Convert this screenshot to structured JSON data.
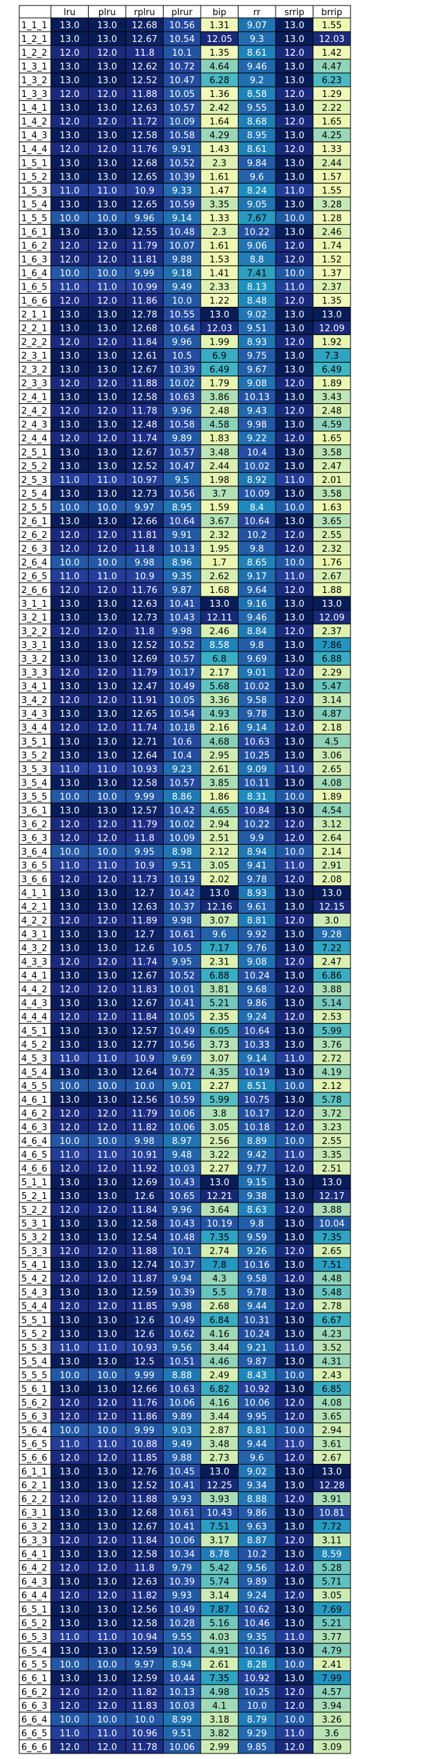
{
  "chart_data": {
    "type": "heatmap",
    "columns": [
      "lru",
      "plru",
      "rplru",
      "plrur",
      "bip",
      "rr",
      "srrip",
      "brrip"
    ],
    "rows": [
      "1_1_1",
      "1_2_1",
      "1_2_2",
      "1_3_1",
      "1_3_2",
      "1_3_3",
      "1_4_1",
      "1_4_2",
      "1_4_3",
      "1_4_4",
      "1_5_1",
      "1_5_2",
      "1_5_3",
      "1_5_4",
      "1_5_5",
      "1_6_1",
      "1_6_2",
      "1_6_3",
      "1_6_4",
      "1_6_5",
      "1_6_6",
      "2_1_1",
      "2_2_1",
      "2_2_2",
      "2_3_1",
      "2_3_2",
      "2_3_3",
      "2_4_1",
      "2_4_2",
      "2_4_3",
      "2_4_4",
      "2_5_1",
      "2_5_2",
      "2_5_3",
      "2_5_4",
      "2_5_5",
      "2_6_1",
      "2_6_2",
      "2_6_3",
      "2_6_4",
      "2_6_5",
      "2_6_6",
      "3_1_1",
      "3_2_1",
      "3_2_2",
      "3_3_1",
      "3_3_2",
      "3_3_3",
      "3_4_1",
      "3_4_2",
      "3_4_3",
      "3_4_4",
      "3_5_1",
      "3_5_2",
      "3_5_3",
      "3_5_4",
      "3_5_5",
      "3_6_1",
      "3_6_2",
      "3_6_3",
      "3_6_4",
      "3_6_5",
      "3_6_6",
      "4_1_1",
      "4_2_1",
      "4_2_2",
      "4_3_1",
      "4_3_2",
      "4_3_3",
      "4_4_1",
      "4_4_2",
      "4_4_3",
      "4_4_4",
      "4_5_1",
      "4_5_2",
      "4_5_3",
      "4_5_4",
      "4_5_5",
      "4_6_1",
      "4_6_2",
      "4_6_3",
      "4_6_4",
      "4_6_5",
      "4_6_6",
      "5_1_1",
      "5_2_1",
      "5_2_2",
      "5_3_1",
      "5_3_2",
      "5_3_3",
      "5_4_1",
      "5_4_2",
      "5_4_3",
      "5_4_4",
      "5_5_1",
      "5_5_2",
      "5_5_3",
      "5_5_4",
      "5_5_5",
      "5_6_1",
      "5_6_2",
      "5_6_3",
      "5_6_4",
      "5_6_5",
      "5_6_6",
      "6_1_1",
      "6_2_1",
      "6_2_2",
      "6_3_1",
      "6_3_2",
      "6_3_3",
      "6_4_1",
      "6_4_2",
      "6_4_3",
      "6_4_4",
      "6_5_1",
      "6_5_2",
      "6_5_3",
      "6_5_4",
      "6_5_5",
      "6_6_1",
      "6_6_2",
      "6_6_3",
      "6_6_4",
      "6_6_5",
      "6_6_6"
    ],
    "values": [
      [
        13.0,
        13.0,
        12.68,
        10.56,
        1.31,
        9.07,
        13.0,
        1.55
      ],
      [
        13.0,
        13.0,
        12.67,
        10.54,
        12.05,
        9.3,
        13.0,
        12.03
      ],
      [
        12.0,
        12.0,
        11.8,
        10.1,
        1.35,
        8.61,
        12.0,
        1.42
      ],
      [
        13.0,
        13.0,
        12.62,
        10.72,
        4.64,
        9.46,
        13.0,
        4.47
      ],
      [
        13.0,
        13.0,
        12.52,
        10.47,
        6.28,
        9.2,
        13.0,
        6.23
      ],
      [
        12.0,
        12.0,
        11.88,
        10.05,
        1.36,
        8.58,
        12.0,
        1.29
      ],
      [
        13.0,
        13.0,
        12.63,
        10.57,
        2.42,
        9.55,
        13.0,
        2.22
      ],
      [
        12.0,
        12.0,
        11.72,
        10.09,
        1.64,
        8.68,
        12.0,
        1.65
      ],
      [
        13.0,
        13.0,
        12.58,
        10.58,
        4.29,
        8.95,
        13.0,
        4.25
      ],
      [
        12.0,
        12.0,
        11.76,
        9.91,
        1.43,
        8.61,
        12.0,
        1.33
      ],
      [
        13.0,
        13.0,
        12.68,
        10.52,
        2.3,
        9.84,
        13.0,
        2.44
      ],
      [
        13.0,
        13.0,
        12.65,
        10.39,
        1.61,
        9.6,
        13.0,
        1.57
      ],
      [
        11.0,
        11.0,
        10.9,
        9.33,
        1.47,
        8.24,
        11.0,
        1.55
      ],
      [
        13.0,
        13.0,
        12.65,
        10.59,
        3.35,
        9.05,
        13.0,
        3.28
      ],
      [
        10.0,
        10.0,
        9.96,
        9.14,
        1.33,
        7.67,
        10.0,
        1.28
      ],
      [
        13.0,
        13.0,
        12.55,
        10.48,
        2.3,
        10.22,
        13.0,
        2.46
      ],
      [
        12.0,
        12.0,
        11.79,
        10.07,
        1.61,
        9.06,
        12.0,
        1.74
      ],
      [
        12.0,
        12.0,
        11.81,
        9.88,
        1.53,
        8.8,
        12.0,
        1.52
      ],
      [
        10.0,
        10.0,
        9.99,
        9.18,
        1.41,
        7.41,
        10.0,
        1.37
      ],
      [
        11.0,
        11.0,
        10.99,
        9.49,
        2.33,
        8.13,
        11.0,
        2.37
      ],
      [
        12.0,
        12.0,
        11.86,
        10.0,
        1.22,
        8.48,
        12.0,
        1.35
      ],
      [
        13.0,
        13.0,
        12.78,
        10.55,
        13.0,
        9.02,
        13.0,
        13.0
      ],
      [
        13.0,
        13.0,
        12.68,
        10.64,
        12.03,
        9.51,
        13.0,
        12.09
      ],
      [
        12.0,
        12.0,
        11.84,
        9.96,
        1.99,
        8.93,
        12.0,
        1.92
      ],
      [
        13.0,
        13.0,
        12.61,
        10.5,
        6.9,
        9.75,
        13.0,
        7.3
      ],
      [
        13.0,
        13.0,
        12.67,
        10.39,
        6.49,
        9.67,
        13.0,
        6.49
      ],
      [
        12.0,
        12.0,
        11.88,
        10.02,
        1.79,
        9.08,
        12.0,
        1.89
      ],
      [
        13.0,
        13.0,
        12.58,
        10.63,
        3.86,
        10.13,
        13.0,
        3.43
      ],
      [
        12.0,
        12.0,
        11.78,
        9.96,
        2.48,
        9.43,
        12.0,
        2.48
      ],
      [
        13.0,
        13.0,
        12.48,
        10.58,
        4.58,
        9.98,
        13.0,
        4.59
      ],
      [
        12.0,
        12.0,
        11.74,
        9.89,
        1.83,
        9.22,
        12.0,
        1.65
      ],
      [
        13.0,
        13.0,
        12.67,
        10.57,
        3.48,
        10.4,
        13.0,
        3.58
      ],
      [
        13.0,
        13.0,
        12.52,
        10.47,
        2.44,
        10.02,
        13.0,
        2.47
      ],
      [
        11.0,
        11.0,
        10.97,
        9.5,
        1.98,
        8.92,
        11.0,
        2.01
      ],
      [
        13.0,
        13.0,
        12.73,
        10.56,
        3.7,
        10.09,
        13.0,
        3.58
      ],
      [
        10.0,
        10.0,
        9.97,
        8.95,
        1.59,
        8.4,
        10.0,
        1.63
      ],
      [
        13.0,
        13.0,
        12.66,
        10.64,
        3.67,
        10.64,
        13.0,
        3.65
      ],
      [
        12.0,
        12.0,
        11.81,
        9.91,
        2.32,
        10.2,
        12.0,
        2.55
      ],
      [
        12.0,
        12.0,
        11.8,
        10.13,
        1.95,
        9.8,
        12.0,
        2.32
      ],
      [
        10.0,
        10.0,
        9.98,
        8.96,
        1.7,
        8.65,
        10.0,
        1.76
      ],
      [
        11.0,
        11.0,
        10.9,
        9.35,
        2.62,
        9.17,
        11.0,
        2.67
      ],
      [
        12.0,
        12.0,
        11.76,
        9.87,
        1.68,
        9.64,
        12.0,
        1.88
      ],
      [
        13.0,
        13.0,
        12.63,
        10.41,
        13.0,
        9.16,
        13.0,
        13.0
      ],
      [
        13.0,
        13.0,
        12.73,
        10.43,
        12.11,
        9.46,
        13.0,
        12.09
      ],
      [
        12.0,
        12.0,
        11.8,
        9.98,
        2.46,
        8.84,
        12.0,
        2.37
      ],
      [
        13.0,
        13.0,
        12.52,
        10.52,
        8.58,
        9.8,
        13.0,
        7.86
      ],
      [
        13.0,
        13.0,
        12.69,
        10.57,
        6.8,
        9.69,
        13.0,
        6.88
      ],
      [
        12.0,
        12.0,
        11.79,
        10.17,
        2.17,
        9.01,
        12.0,
        2.29
      ],
      [
        13.0,
        13.0,
        12.47,
        10.49,
        5.68,
        10.02,
        13.0,
        5.47
      ],
      [
        12.0,
        12.0,
        11.91,
        10.05,
        3.36,
        9.58,
        12.0,
        3.14
      ],
      [
        13.0,
        13.0,
        12.65,
        10.54,
        4.93,
        9.78,
        13.0,
        4.87
      ],
      [
        12.0,
        12.0,
        11.74,
        10.18,
        2.16,
        9.14,
        12.0,
        2.18
      ],
      [
        13.0,
        13.0,
        12.71,
        10.6,
        4.68,
        10.63,
        13.0,
        4.5
      ],
      [
        13.0,
        13.0,
        12.64,
        10.4,
        2.95,
        10.25,
        13.0,
        3.06
      ],
      [
        11.0,
        11.0,
        10.93,
        9.23,
        2.61,
        9.09,
        11.0,
        2.65
      ],
      [
        13.0,
        13.0,
        12.58,
        10.57,
        3.85,
        10.11,
        13.0,
        4.08
      ],
      [
        10.0,
        10.0,
        9.99,
        8.86,
        1.86,
        8.31,
        10.0,
        1.89
      ],
      [
        13.0,
        13.0,
        12.57,
        10.42,
        4.65,
        10.84,
        13.0,
        4.54
      ],
      [
        12.0,
        12.0,
        11.79,
        10.02,
        2.94,
        10.22,
        12.0,
        3.12
      ],
      [
        12.0,
        12.0,
        11.8,
        10.09,
        2.51,
        9.9,
        12.0,
        2.64
      ],
      [
        10.0,
        10.0,
        9.95,
        8.98,
        2.12,
        8.94,
        10.0,
        2.14
      ],
      [
        11.0,
        11.0,
        10.9,
        9.51,
        3.05,
        9.41,
        11.0,
        2.91
      ],
      [
        12.0,
        12.0,
        11.73,
        10.19,
        2.02,
        9.78,
        12.0,
        2.08
      ],
      [
        13.0,
        13.0,
        12.7,
        10.42,
        13.0,
        8.93,
        13.0,
        13.0
      ],
      [
        13.0,
        13.0,
        12.63,
        10.37,
        12.16,
        9.61,
        13.0,
        12.15
      ],
      [
        12.0,
        12.0,
        11.89,
        9.98,
        3.07,
        8.81,
        12.0,
        3.0
      ],
      [
        13.0,
        13.0,
        12.7,
        10.61,
        9.6,
        9.92,
        13.0,
        9.28
      ],
      [
        13.0,
        13.0,
        12.6,
        10.5,
        7.17,
        9.76,
        13.0,
        7.22
      ],
      [
        12.0,
        12.0,
        11.74,
        9.95,
        2.31,
        9.08,
        12.0,
        2.47
      ],
      [
        13.0,
        13.0,
        12.67,
        10.52,
        6.88,
        10.24,
        13.0,
        6.86
      ],
      [
        12.0,
        12.0,
        11.83,
        10.01,
        3.81,
        9.68,
        12.0,
        3.88
      ],
      [
        13.0,
        13.0,
        12.67,
        10.41,
        5.21,
        9.86,
        13.0,
        5.14
      ],
      [
        12.0,
        12.0,
        11.84,
        10.05,
        2.35,
        9.24,
        12.0,
        2.53
      ],
      [
        13.0,
        13.0,
        12.57,
        10.49,
        6.05,
        10.64,
        13.0,
        5.99
      ],
      [
        13.0,
        13.0,
        12.77,
        10.56,
        3.73,
        10.33,
        13.0,
        3.76
      ],
      [
        11.0,
        11.0,
        10.9,
        9.69,
        3.07,
        9.14,
        11.0,
        2.72
      ],
      [
        13.0,
        13.0,
        12.64,
        10.72,
        4.35,
        10.19,
        13.0,
        4.19
      ],
      [
        10.0,
        10.0,
        10.0,
        9.01,
        2.27,
        8.51,
        10.0,
        2.12
      ],
      [
        13.0,
        13.0,
        12.56,
        10.59,
        5.99,
        10.75,
        13.0,
        5.78
      ],
      [
        12.0,
        12.0,
        11.79,
        10.06,
        3.8,
        10.17,
        12.0,
        3.72
      ],
      [
        12.0,
        12.0,
        11.82,
        10.06,
        3.05,
        10.18,
        12.0,
        3.23
      ],
      [
        10.0,
        10.0,
        9.98,
        8.97,
        2.56,
        8.89,
        10.0,
        2.55
      ],
      [
        11.0,
        11.0,
        10.91,
        9.48,
        3.22,
        9.42,
        11.0,
        3.35
      ],
      [
        12.0,
        12.0,
        11.92,
        10.03,
        2.27,
        9.77,
        12.0,
        2.51
      ],
      [
        13.0,
        13.0,
        12.69,
        10.43,
        13.0,
        9.15,
        13.0,
        13.0
      ],
      [
        13.0,
        13.0,
        12.6,
        10.65,
        12.21,
        9.38,
        13.0,
        12.17
      ],
      [
        12.0,
        12.0,
        11.84,
        9.96,
        3.64,
        8.63,
        12.0,
        3.88
      ],
      [
        13.0,
        13.0,
        12.58,
        10.43,
        10.19,
        9.8,
        13.0,
        10.04
      ],
      [
        13.0,
        13.0,
        12.54,
        10.48,
        7.35,
        9.59,
        13.0,
        7.35
      ],
      [
        12.0,
        12.0,
        11.88,
        10.1,
        2.74,
        9.26,
        12.0,
        2.65
      ],
      [
        13.0,
        13.0,
        12.74,
        10.37,
        7.8,
        10.16,
        13.0,
        7.51
      ],
      [
        12.0,
        12.0,
        11.87,
        9.94,
        4.3,
        9.58,
        12.0,
        4.48
      ],
      [
        13.0,
        13.0,
        12.59,
        10.39,
        5.5,
        9.78,
        13.0,
        5.48
      ],
      [
        12.0,
        12.0,
        11.85,
        9.98,
        2.68,
        9.44,
        12.0,
        2.78
      ],
      [
        13.0,
        13.0,
        12.6,
        10.49,
        6.84,
        10.31,
        13.0,
        6.67
      ],
      [
        13.0,
        13.0,
        12.6,
        10.62,
        4.16,
        10.24,
        13.0,
        4.23
      ],
      [
        11.0,
        11.0,
        10.93,
        9.56,
        3.44,
        9.21,
        11.0,
        3.52
      ],
      [
        13.0,
        13.0,
        12.5,
        10.51,
        4.46,
        9.87,
        13.0,
        4.31
      ],
      [
        10.0,
        10.0,
        9.99,
        8.88,
        2.49,
        8.43,
        10.0,
        2.43
      ],
      [
        13.0,
        13.0,
        12.66,
        10.63,
        6.82,
        10.92,
        13.0,
        6.85
      ],
      [
        12.0,
        12.0,
        11.76,
        10.06,
        4.16,
        10.06,
        12.0,
        4.08
      ],
      [
        12.0,
        12.0,
        11.86,
        9.89,
        3.44,
        9.95,
        12.0,
        3.65
      ],
      [
        10.0,
        10.0,
        9.99,
        9.03,
        2.87,
        8.81,
        10.0,
        2.94
      ],
      [
        11.0,
        11.0,
        10.88,
        9.49,
        3.48,
        9.44,
        11.0,
        3.61
      ],
      [
        12.0,
        12.0,
        11.85,
        9.88,
        2.73,
        9.6,
        12.0,
        2.67
      ],
      [
        13.0,
        13.0,
        12.76,
        10.45,
        13.0,
        9.02,
        13.0,
        13.0
      ],
      [
        13.0,
        13.0,
        12.52,
        10.41,
        12.25,
        9.34,
        13.0,
        12.28
      ],
      [
        12.0,
        12.0,
        11.88,
        9.93,
        3.93,
        8.88,
        12.0,
        3.91
      ],
      [
        13.0,
        13.0,
        12.68,
        10.61,
        10.43,
        9.86,
        13.0,
        10.81
      ],
      [
        13.0,
        13.0,
        12.67,
        10.41,
        7.51,
        9.63,
        13.0,
        7.72
      ],
      [
        12.0,
        12.0,
        11.84,
        10.06,
        3.17,
        8.87,
        12.0,
        3.11
      ],
      [
        13.0,
        13.0,
        12.58,
        10.34,
        8.78,
        10.2,
        13.0,
        8.59
      ],
      [
        12.0,
        12.0,
        11.8,
        9.79,
        5.42,
        9.56,
        12.0,
        5.28
      ],
      [
        13.0,
        13.0,
        12.63,
        10.39,
        5.74,
        9.89,
        13.0,
        5.71
      ],
      [
        12.0,
        12.0,
        11.82,
        9.93,
        3.14,
        9.24,
        12.0,
        3.05
      ],
      [
        13.0,
        13.0,
        12.56,
        10.49,
        7.87,
        10.62,
        13.0,
        7.69
      ],
      [
        13.0,
        13.0,
        12.58,
        10.28,
        5.16,
        10.46,
        13.0,
        5.21
      ],
      [
        11.0,
        11.0,
        10.94,
        9.55,
        4.03,
        9.35,
        11.0,
        3.77
      ],
      [
        13.0,
        13.0,
        12.59,
        10.4,
        4.91,
        10.16,
        13.0,
        4.79
      ],
      [
        10.0,
        10.0,
        9.97,
        8.94,
        2.61,
        8.28,
        10.0,
        2.41
      ],
      [
        13.0,
        13.0,
        12.59,
        10.44,
        7.35,
        10.92,
        13.0,
        7.99
      ],
      [
        12.0,
        12.0,
        11.82,
        10.13,
        4.98,
        10.25,
        12.0,
        4.57
      ],
      [
        12.0,
        12.0,
        11.83,
        10.03,
        4.1,
        10.0,
        12.0,
        3.94
      ],
      [
        10.0,
        10.0,
        10.0,
        8.99,
        3.18,
        8.79,
        10.0,
        3.26
      ],
      [
        11.0,
        11.0,
        10.96,
        9.51,
        3.82,
        9.29,
        11.0,
        3.6
      ],
      [
        12.0,
        12.0,
        11.78,
        10.06,
        2.99,
        9.85,
        12.0,
        3.09
      ]
    ],
    "colormap": "YlGnBu",
    "value_format": "one-decimal except lru/plru/srrip and whole numbers"
  }
}
